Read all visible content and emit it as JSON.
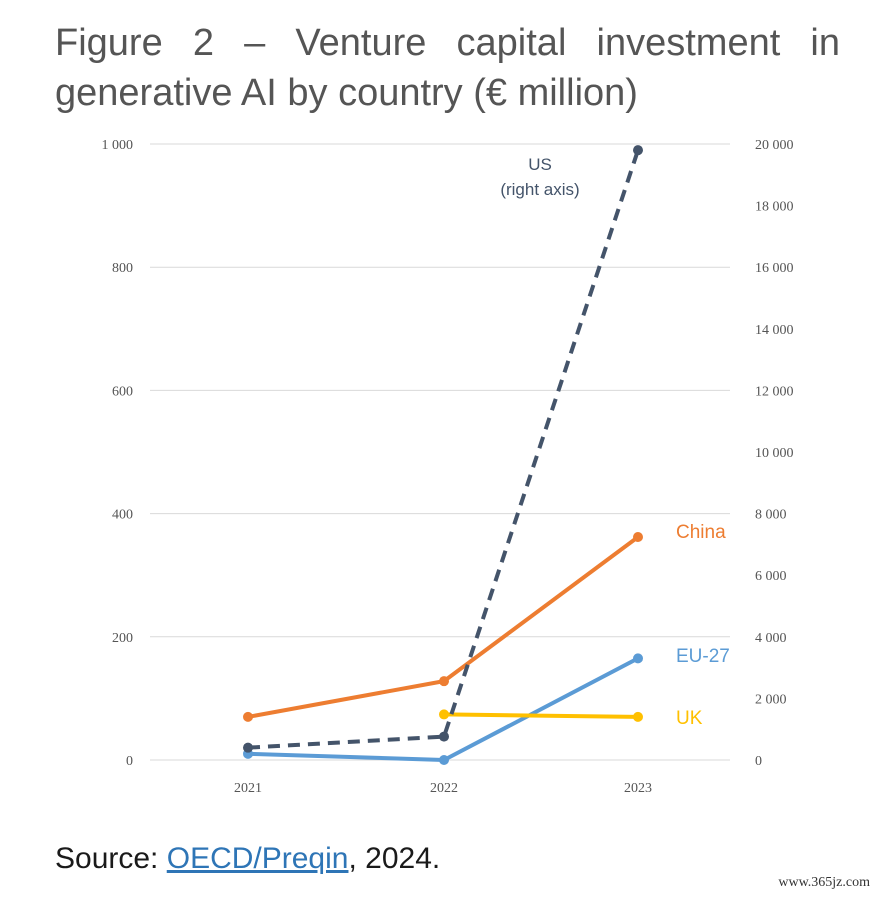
{
  "chart_data": {
    "type": "line",
    "title": "Figure 2 – Venture capital investment in generative AI by country (€ million)",
    "x": [
      "2021",
      "2022",
      "2023"
    ],
    "y_left": {
      "ylim": [
        0,
        1000
      ],
      "ticks": [
        0,
        200,
        400,
        600,
        800,
        1000
      ],
      "tick_labels": [
        "0",
        "200",
        "400",
        "600",
        "800",
        "1 000"
      ]
    },
    "y_right": {
      "ylim": [
        0,
        20000
      ],
      "ticks": [
        0,
        2000,
        4000,
        6000,
        8000,
        10000,
        12000,
        14000,
        16000,
        18000,
        20000
      ],
      "tick_labels": [
        "0",
        "2 000",
        "4 000",
        "6 000",
        "8 000",
        "10 000",
        "12 000",
        "14 000",
        "16 000",
        "18 000",
        "20 000"
      ]
    },
    "grid": true,
    "series": [
      {
        "name": "China",
        "axis": "left",
        "color": "#ed7d31",
        "style": "solid",
        "values": [
          70,
          128,
          362
        ]
      },
      {
        "name": "EU-27",
        "axis": "left",
        "color": "#5b9bd5",
        "style": "solid",
        "values": [
          10,
          0,
          165
        ]
      },
      {
        "name": "UK",
        "axis": "left",
        "color": "#ffc000",
        "style": "solid",
        "values": [
          null,
          74,
          70
        ]
      },
      {
        "name": "US",
        "axis": "right",
        "color": "#44546a",
        "style": "dashed",
        "values": [
          400,
          760,
          19800
        ],
        "label_lines": [
          "US",
          "(right axis)"
        ]
      }
    ]
  },
  "source": {
    "prefix": "Source: ",
    "link": "OECD/Preqin",
    "suffix": ", 2024."
  },
  "watermark": "www.365jz.com"
}
